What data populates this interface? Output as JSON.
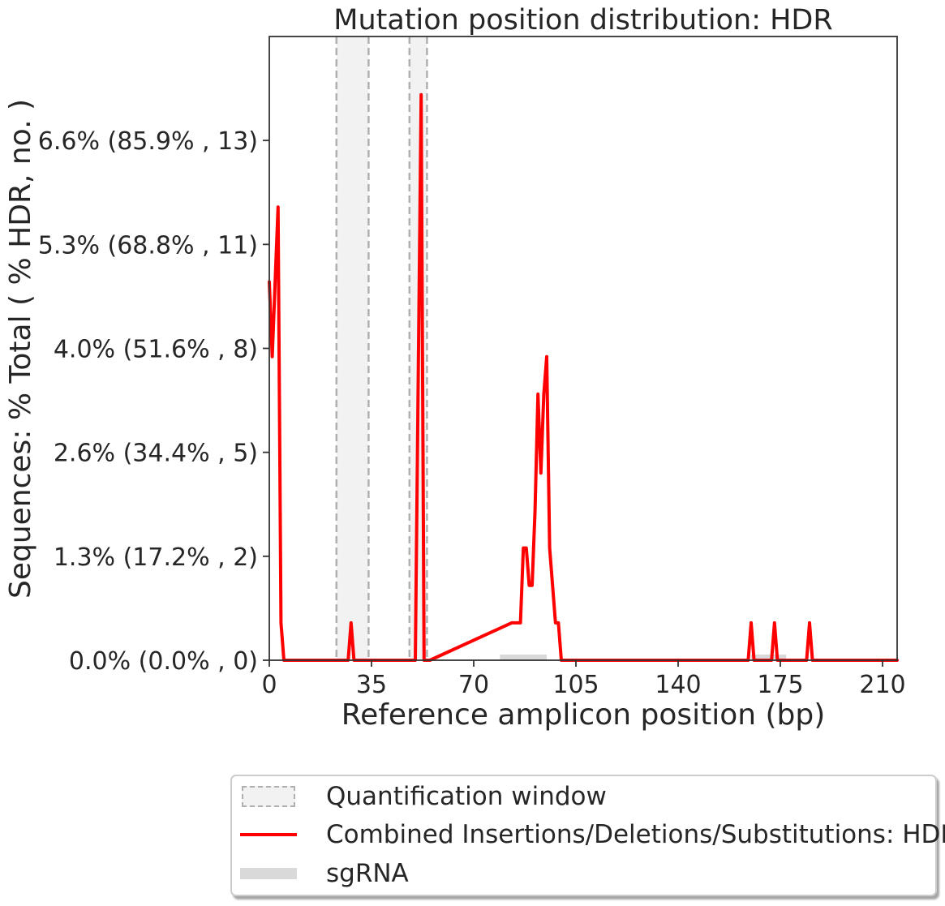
{
  "chart_data": {
    "type": "line",
    "title": "Mutation position distribution: HDR",
    "xlabel": "Reference amplicon position (bp)",
    "ylabel": "Sequences: % Total ( % HDR, no. )",
    "xlim": [
      0,
      215
    ],
    "ylim": [
      0,
      15
    ],
    "x_ticks": [
      0,
      35,
      70,
      105,
      140,
      175,
      210
    ],
    "x_tick_labels": [
      "0",
      "35",
      "70",
      "105",
      "140",
      "175",
      "210"
    ],
    "y_ticks": [
      0,
      2.5,
      5,
      7.5,
      10,
      12.5
    ],
    "y_tick_labels": [
      "0.0% (0.0% , 0)",
      "1.3% (17.2% , 2)",
      "2.6% (34.4% , 5)",
      "4.0% (51.6% , 8)",
      "5.3% (68.8% , 11)",
      "6.6% (85.9% , 13)"
    ],
    "quantification_windows": [
      [
        23,
        34
      ],
      [
        48,
        54
      ]
    ],
    "sgrna_regions": [
      [
        79,
        95
      ],
      [
        165,
        177
      ]
    ],
    "series": [
      {
        "name": "Combined Insertions/Deletions/Substitutions: HDR",
        "color": "#ff0000",
        "x": [
          0,
          1,
          2,
          3,
          4,
          5,
          27,
          28,
          29,
          50,
          52,
          53,
          54,
          55,
          83,
          84,
          86,
          87,
          88,
          89,
          90,
          91,
          92,
          93,
          94,
          95,
          96,
          97,
          98,
          99,
          100,
          101,
          164,
          165,
          166,
          172,
          173,
          174,
          184,
          185,
          186,
          215
        ],
        "y": [
          9.1,
          7.3,
          9.1,
          10.9,
          0.9,
          0,
          0,
          0.9,
          0,
          0,
          13.6,
          0,
          0,
          0,
          0.9,
          0.9,
          0.9,
          2.7,
          2.7,
          1.8,
          1.8,
          3.6,
          6.4,
          4.5,
          6.4,
          7.3,
          2.7,
          1.8,
          0.9,
          0.9,
          0,
          0,
          0,
          0.9,
          0,
          0,
          0.9,
          0,
          0,
          0.9,
          0,
          0
        ]
      }
    ],
    "legend": {
      "placement": "bottom-right",
      "entries": [
        "Quantification window",
        "Combined Insertions/Deletions/Substitutions: HDR",
        "sgRNA"
      ]
    },
    "grid": false
  }
}
